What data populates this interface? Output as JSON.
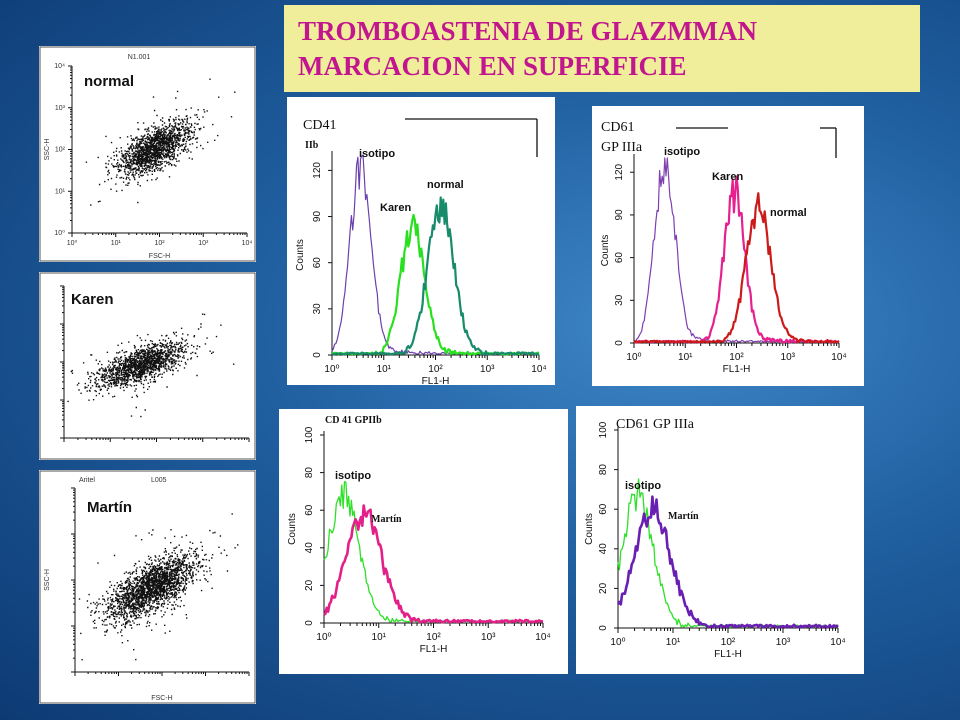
{
  "title": {
    "line1": "TROMBOASTENIA DE GLAZMMAN",
    "line2": "MARCACION EN SUPERFICIE"
  },
  "chart_data": [
    {
      "type": "scatter",
      "id": "dot-normal",
      "label": "normal",
      "header": "N1.001",
      "xlabel": "FSC-H",
      "ylabel": "SSC-H",
      "log_axes": true,
      "y_ticks": [
        "10⁰",
        "10¹",
        "10²",
        "10³",
        "10⁴"
      ],
      "x_ticks": [
        "10⁰",
        "10¹",
        "10²",
        "10³",
        "10⁴"
      ],
      "cloud": {
        "cx": 1.9,
        "cy": 2.05,
        "sx": 0.38,
        "sy": 0.36,
        "angle_deg": 32,
        "n": 1600
      }
    },
    {
      "type": "scatter",
      "id": "dot-karen",
      "label": "Karen",
      "log_axes": true,
      "cloud": {
        "cx": 1.65,
        "cy": 1.95,
        "sx": 0.42,
        "sy": 0.32,
        "angle_deg": 28,
        "n": 1500
      }
    },
    {
      "type": "scatter",
      "id": "dot-martin",
      "label": "Martín",
      "header_left": "Aritel",
      "header_right": "L005",
      "ylabel": "SSC-H",
      "xlabel": "FSC-H",
      "log_axes": true,
      "cloud": {
        "cx": 1.75,
        "cy": 1.85,
        "sx": 0.45,
        "sy": 0.38,
        "angle_deg": 30,
        "n": 2200
      }
    },
    {
      "type": "line",
      "id": "hist-cd41",
      "title": "CD41",
      "subtitle": "IIb",
      "xlabel": "FL1-H",
      "ylabel": "Counts",
      "x_log": true,
      "xlim": [
        0,
        4
      ],
      "ylim": [
        0,
        130
      ],
      "y_ticks": [
        0,
        30,
        60,
        90,
        120
      ],
      "x_tick_labels": [
        "10⁰",
        "10¹",
        "10²",
        "10³",
        "10⁴"
      ],
      "series": [
        {
          "name": "isotipo",
          "color": "#6c3fae",
          "width": 1.2,
          "mu": 0.55,
          "sigma": 0.2,
          "peak": 122
        },
        {
          "name": "Karen",
          "color": "#29e01f",
          "width": 2.2,
          "mu": 1.55,
          "sigma": 0.23,
          "peak": 82
        },
        {
          "name": "normal",
          "color": "#178b6a",
          "width": 2.2,
          "mu": 2.1,
          "sigma": 0.25,
          "peak": 96
        }
      ],
      "annotations": [
        "isotipo",
        "Karen",
        "normal"
      ]
    },
    {
      "type": "line",
      "id": "hist-cd61",
      "title": "CD61",
      "subtitle": "GP IIIa",
      "xlabel": "FL1-H",
      "ylabel": "Counts",
      "x_log": true,
      "xlim": [
        0,
        4
      ],
      "ylim": [
        0,
        130
      ],
      "y_ticks": [
        0,
        30,
        60,
        90,
        120
      ],
      "x_tick_labels": [
        "10⁰",
        "10¹",
        "10²",
        "10³",
        "10⁴"
      ],
      "series": [
        {
          "name": "isotipo",
          "color": "#7e3fb0",
          "width": 1.2,
          "mu": 0.6,
          "sigma": 0.2,
          "peak": 124
        },
        {
          "name": "Karen",
          "color": "#e6208e",
          "width": 2.2,
          "mu": 1.95,
          "sigma": 0.2,
          "peak": 104
        },
        {
          "name": "normal",
          "color": "#cc1a1a",
          "width": 2.2,
          "mu": 2.42,
          "sigma": 0.24,
          "peak": 93
        }
      ],
      "annotations": [
        "isotipo",
        "Karen",
        "normal"
      ]
    },
    {
      "type": "line",
      "id": "hist-cd41-martin",
      "title": "CD 41 GPIIb",
      "xlabel": "FL1-H",
      "ylabel": "Counts",
      "x_log": true,
      "xlim": [
        0,
        4
      ],
      "ylim": [
        0,
        100
      ],
      "y_ticks": [
        0,
        20,
        40,
        60,
        80,
        100
      ],
      "x_tick_labels": [
        "10⁰",
        "10¹",
        "10²",
        "10³",
        "10⁴"
      ],
      "series": [
        {
          "name": "isotipo",
          "color": "#2ee028",
          "width": 1.3,
          "mu": 0.35,
          "sigma": 0.28,
          "peak": 66
        },
        {
          "name": "Martín",
          "color": "#e3208a",
          "width": 2.6,
          "mu": 0.72,
          "sigma": 0.33,
          "peak": 56
        }
      ],
      "annotations": [
        "isotipo",
        "Martín"
      ]
    },
    {
      "type": "line",
      "id": "hist-cd61-martin",
      "title": "CD61   GP IIIa",
      "xlabel": "FL1-H",
      "ylabel": "Counts",
      "x_log": true,
      "xlim": [
        0,
        4
      ],
      "ylim": [
        0,
        100
      ],
      "y_ticks": [
        0,
        20,
        40,
        60,
        80,
        100
      ],
      "x_tick_labels": [
        "10⁰",
        "10¹",
        "10²",
        "10³",
        "10⁴"
      ],
      "series": [
        {
          "name": "isotipo",
          "color": "#2ee028",
          "width": 1.3,
          "mu": 0.35,
          "sigma": 0.28,
          "peak": 66
        },
        {
          "name": "Martín",
          "color": "#6a1fb3",
          "width": 2.6,
          "mu": 0.62,
          "sigma": 0.33,
          "peak": 58
        }
      ],
      "annotations": [
        "isotipo",
        "Martín"
      ]
    }
  ]
}
